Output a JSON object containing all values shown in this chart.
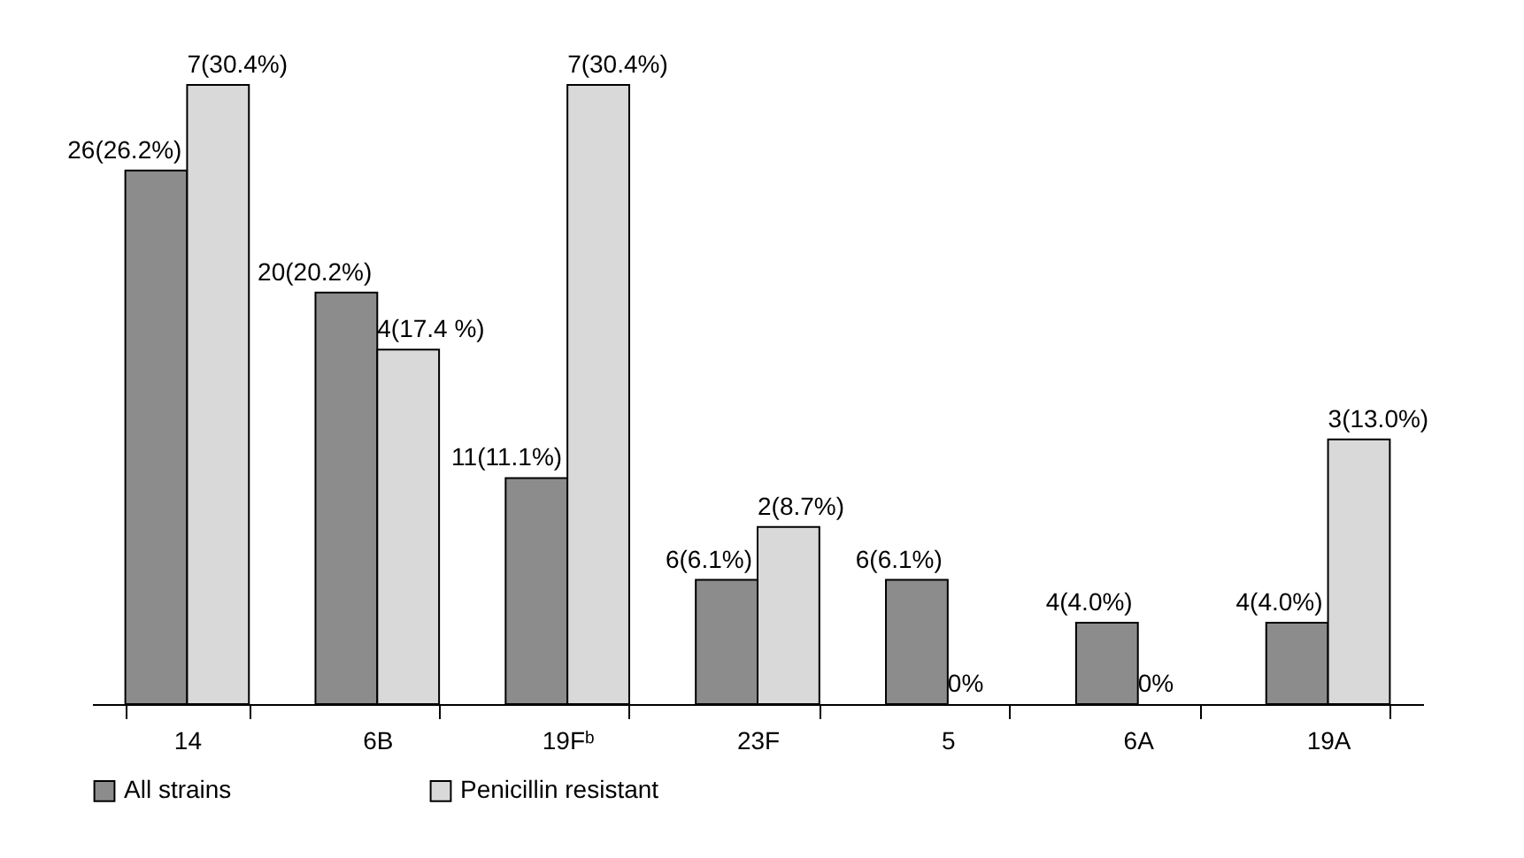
{
  "chart_data": {
    "type": "bar",
    "categories": [
      "14",
      "6B",
      "19Fᵇ",
      "23F",
      "5",
      "6A",
      "19A"
    ],
    "series": [
      {
        "name": "All strains",
        "color": "#8c8c8c",
        "values": [
          26.2,
          20.2,
          11.1,
          6.1,
          6.1,
          4.0,
          4.0
        ],
        "value_labels": [
          "26(26.2%)",
          "20(20.2%)",
          "11(11.1%)",
          "6(6.1%)",
          "6(6.1%)",
          "4(4.0%)",
          "4(4.0%)"
        ]
      },
      {
        "name": "Penicillin resistant",
        "color": "#d9d9d9",
        "values": [
          30.4,
          17.4,
          30.4,
          8.7,
          0,
          0,
          13.0
        ],
        "value_labels": [
          "7(30.4%)",
          "4(17.4 %)",
          "7(30.4%)",
          "2(8.7%)",
          "0%",
          "0%",
          "3(13.0%)"
        ]
      }
    ],
    "tick_labels": "x",
    "legend": "bottom",
    "grid": false
  }
}
